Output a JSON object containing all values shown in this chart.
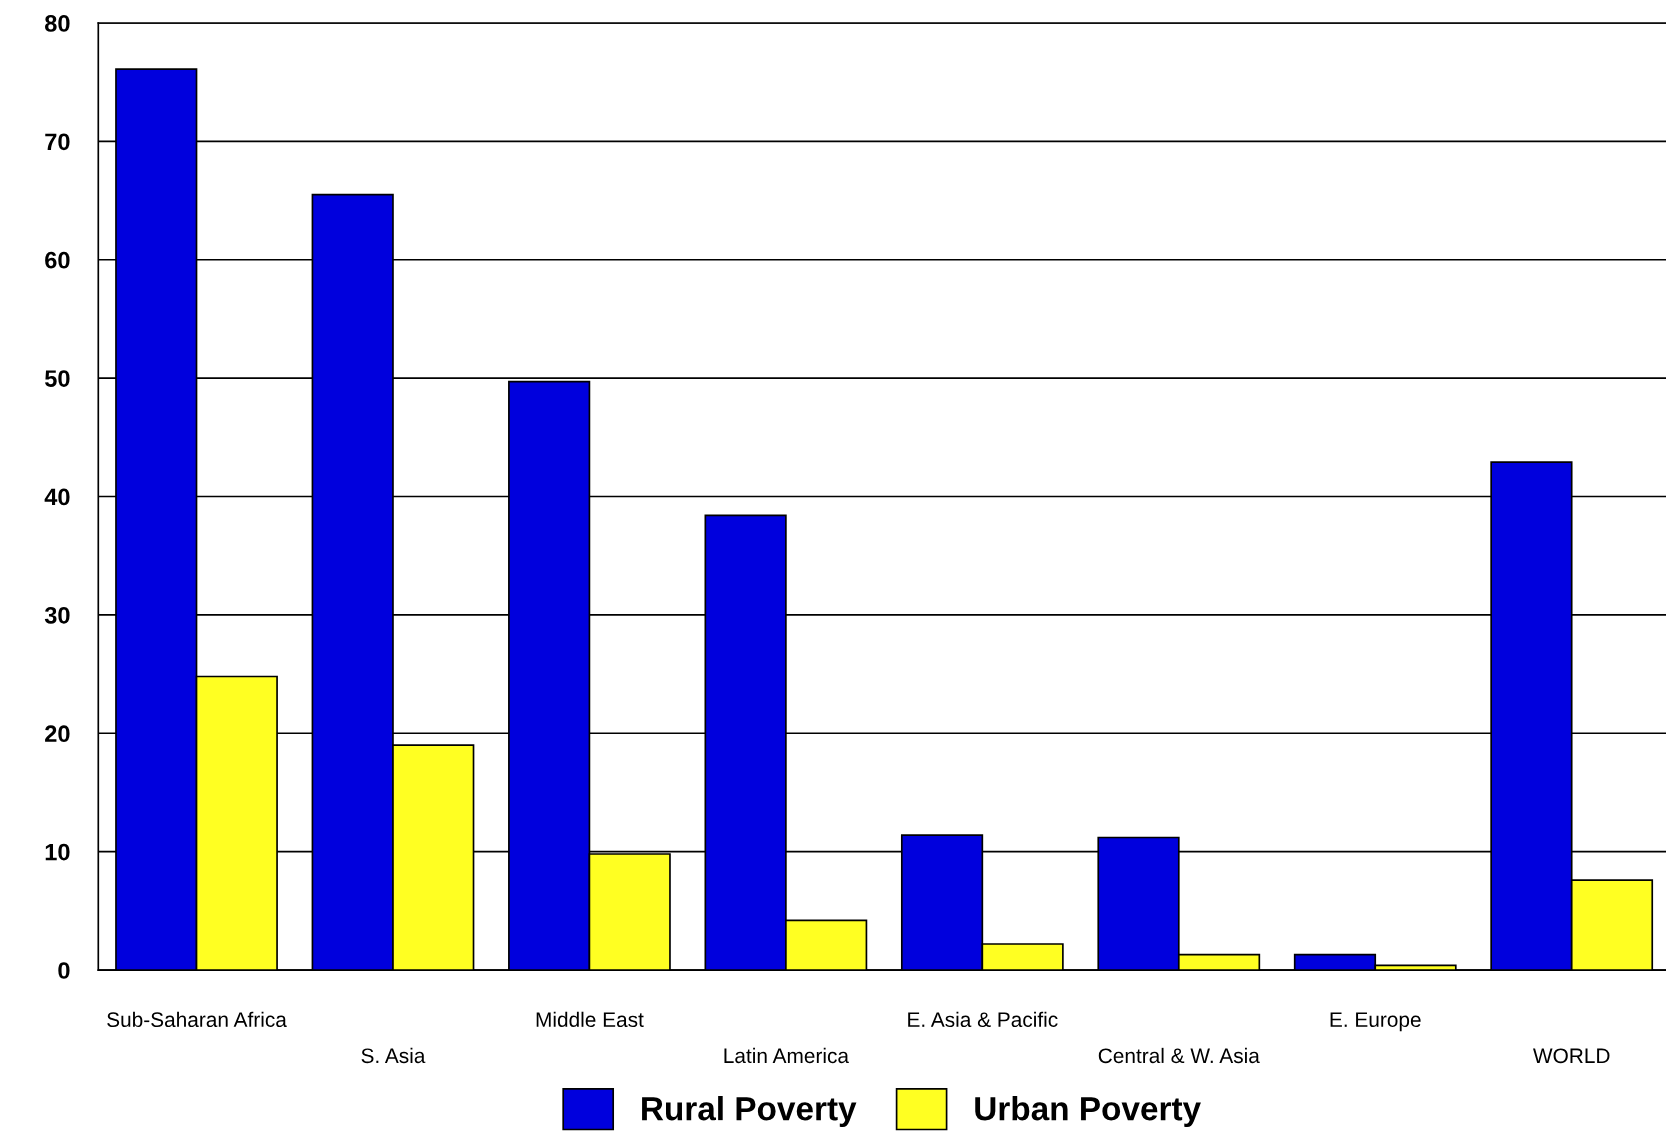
{
  "chart_data": {
    "type": "bar",
    "categories": [
      "Sub-Saharan Africa",
      "S. Asia",
      "Middle East",
      "Latin America",
      "E. Asia & Pacific",
      "Central & W. Asia",
      "E. Europe",
      "WORLD"
    ],
    "series": [
      {
        "name": "Rural Poverty",
        "color": "#0000dd",
        "values": [
          76.1,
          65.5,
          49.7,
          38.4,
          11.4,
          11.2,
          1.3,
          42.9
        ]
      },
      {
        "name": "Urban Poverty",
        "color": "#ffff22",
        "values": [
          24.8,
          19.0,
          9.8,
          4.2,
          2.2,
          1.3,
          0.4,
          7.6
        ]
      }
    ],
    "ylim": [
      0,
      80
    ],
    "yticks": [
      0,
      10,
      20,
      30,
      40,
      50,
      60,
      70,
      80
    ],
    "grid": "y",
    "legend": "bottom"
  }
}
